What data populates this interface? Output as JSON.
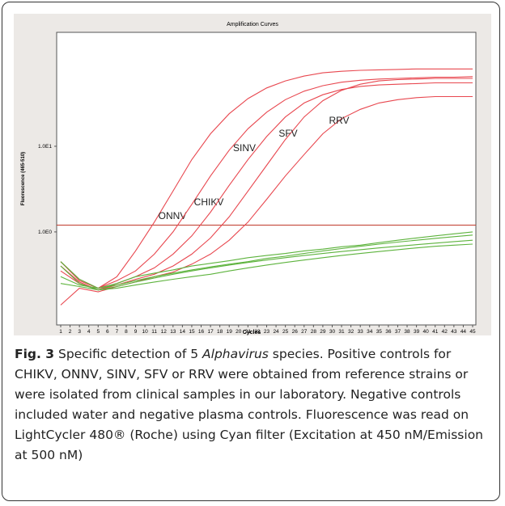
{
  "chart_data": {
    "type": "line",
    "title": "Amplification Curves",
    "xlabel": "Cycles",
    "ylabel": "Fluorescence (465-510)",
    "x": [
      1,
      3,
      5,
      7,
      9,
      11,
      13,
      15,
      17,
      19,
      21,
      23,
      25,
      27,
      29,
      31,
      33,
      35,
      37,
      39,
      41,
      43,
      45
    ],
    "xlim": [
      1,
      45
    ],
    "xticks": [
      1,
      2,
      3,
      4,
      5,
      6,
      7,
      8,
      9,
      10,
      11,
      12,
      13,
      14,
      15,
      16,
      17,
      18,
      19,
      20,
      21,
      22,
      23,
      24,
      25,
      26,
      27,
      28,
      29,
      30,
      31,
      32,
      33,
      34,
      35,
      36,
      37,
      38,
      39,
      40,
      41,
      42,
      43,
      44,
      45
    ],
    "ylim": [
      0.082,
      214
    ],
    "log_y": true,
    "yticks": [
      {
        "value": 10,
        "label": "1.0E1"
      },
      {
        "value": 1,
        "label": "1.0E0"
      }
    ],
    "threshold": 1.2,
    "threshold_color": "#c0392b",
    "series": [
      {
        "name": "ONNV",
        "color": "#e8474f",
        "values": [
          0.45,
          0.28,
          0.22,
          0.3,
          0.6,
          1.3,
          3,
          7,
          14,
          24,
          36,
          48,
          58,
          66,
          72,
          75,
          77,
          78,
          79,
          80,
          80,
          80,
          80
        ]
      },
      {
        "name": "CHIKV",
        "color": "#e8474f",
        "values": [
          0.45,
          0.27,
          0.22,
          0.27,
          0.35,
          0.55,
          1.0,
          2.1,
          4.5,
          9,
          16,
          25,
          35,
          44,
          51,
          56,
          59,
          61,
          62,
          63,
          64,
          64,
          65
        ]
      },
      {
        "name": "SINV",
        "color": "#e8474f",
        "values": [
          0.4,
          0.26,
          0.21,
          0.25,
          0.3,
          0.38,
          0.55,
          0.9,
          1.7,
          3.5,
          7,
          13,
          22,
          32,
          40,
          46,
          50,
          52,
          53,
          54,
          55,
          55,
          55
        ]
      },
      {
        "name": "SFV",
        "color": "#e8474f",
        "values": [
          0.35,
          0.25,
          0.21,
          0.24,
          0.28,
          0.32,
          0.4,
          0.55,
          0.85,
          1.5,
          3,
          6,
          12,
          22,
          34,
          45,
          53,
          58,
          60,
          61,
          62,
          62,
          62
        ]
      },
      {
        "name": "RRV",
        "color": "#e8474f",
        "values": [
          0.14,
          0.22,
          0.2,
          0.23,
          0.26,
          0.3,
          0.34,
          0.42,
          0.55,
          0.8,
          1.3,
          2.4,
          4.5,
          8,
          14,
          21,
          27,
          32,
          35,
          37,
          38,
          38,
          38
        ]
      },
      {
        "color": "#5db33d",
        "values": [
          0.45,
          0.28,
          0.22,
          0.25,
          0.3,
          0.33,
          0.36,
          0.4,
          0.43,
          0.46,
          0.5,
          0.53,
          0.56,
          0.6,
          0.63,
          0.67,
          0.7,
          0.75,
          0.8,
          0.85,
          0.9,
          0.95,
          1.0
        ]
      },
      {
        "color": "#5db33d",
        "values": [
          0.4,
          0.25,
          0.21,
          0.23,
          0.26,
          0.29,
          0.32,
          0.35,
          0.38,
          0.41,
          0.44,
          0.47,
          0.5,
          0.53,
          0.56,
          0.59,
          0.62,
          0.65,
          0.68,
          0.71,
          0.74,
          0.77,
          0.8
        ]
      },
      {
        "color": "#5db33d",
        "values": [
          0.3,
          0.24,
          0.22,
          0.24,
          0.27,
          0.3,
          0.33,
          0.36,
          0.39,
          0.42,
          0.45,
          0.49,
          0.52,
          0.56,
          0.6,
          0.64,
          0.68,
          0.72,
          0.76,
          0.8,
          0.84,
          0.88,
          0.92
        ]
      },
      {
        "color": "#5db33d",
        "values": [
          0.25,
          0.23,
          0.21,
          0.22,
          0.24,
          0.26,
          0.28,
          0.3,
          0.32,
          0.35,
          0.38,
          0.41,
          0.44,
          0.47,
          0.5,
          0.53,
          0.56,
          0.59,
          0.62,
          0.65,
          0.68,
          0.7,
          0.72
        ]
      }
    ]
  },
  "caption": {
    "label": "Fig. 3",
    "text_before": " Specific detection of 5 ",
    "italic": "Alphavirus",
    "text_after": " species. Positive controls for CHIKV, ONNV, SINV, SFV or RRV were obtained from reference strains or were isolated from clinical samples in our laboratory. Negative controls included water and negative plasma controls. Fluorescence was read on LightCycler 480® (Roche) using Cyan filter (Excitation at 450 nM/Emission at 500 nM)"
  }
}
